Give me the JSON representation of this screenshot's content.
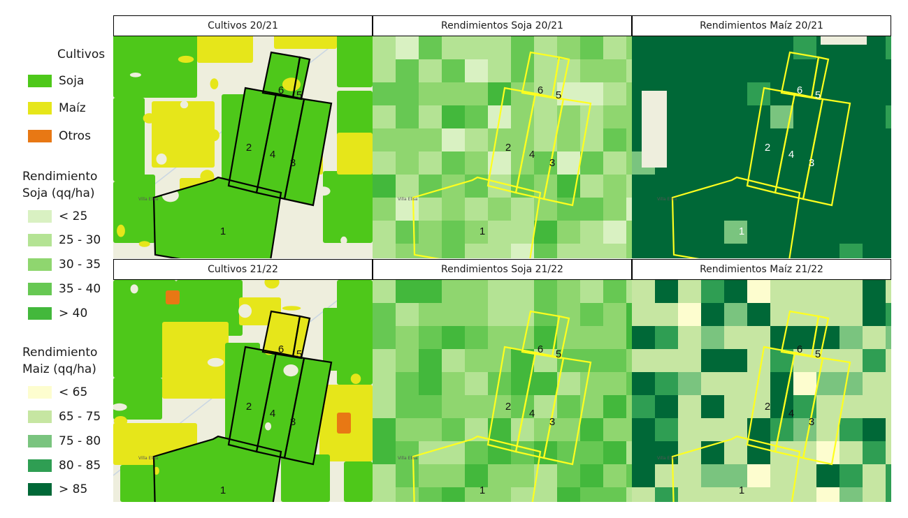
{
  "legend": {
    "cultivos_title": "Cultivos",
    "cultivos": [
      {
        "label": "Soja",
        "color": "#4ec81a"
      },
      {
        "label": "Maíz",
        "color": "#e6e61a"
      },
      {
        "label": "Otros",
        "color": "#e87814"
      }
    ],
    "soja_title_1": "Rendimiento",
    "soja_title_2": "Soja (qq/ha)",
    "soja": [
      {
        "label": "< 25",
        "color": "#d9f1c2"
      },
      {
        "label": "25 - 30",
        "color": "#b4e394"
      },
      {
        "label": "30 - 35",
        "color": "#8fd66f"
      },
      {
        "label": "35 - 40",
        "color": "#67c853"
      },
      {
        "label": "> 40",
        "color": "#43b83c"
      }
    ],
    "maiz_title_1": "Rendimiento",
    "maiz_title_2": "Maiz (qq/ha)",
    "maiz": [
      {
        "label": "< 65",
        "color": "#fdfdcf"
      },
      {
        "label": "65 - 75",
        "color": "#c6e6a2"
      },
      {
        "label": "75 - 80",
        "color": "#7ac47f"
      },
      {
        "label": "80 - 85",
        "color": "#2f9e53"
      },
      {
        "label": "> 85",
        "color": "#006837"
      }
    ]
  },
  "panels": [
    {
      "title": "Cultivos 20/21",
      "kind": "crops",
      "season": "2021",
      "outline": "#000000"
    },
    {
      "title": "Rendimientos Soja 20/21",
      "kind": "soja",
      "season": "2021",
      "outline": "#ffff1e"
    },
    {
      "title": "Rendimientos Maíz 20/21",
      "kind": "maiz",
      "season": "2021",
      "outline": "#ffff1e"
    },
    {
      "title": "Cultivos 21/22",
      "kind": "crops",
      "season": "2122",
      "outline": "#000000"
    },
    {
      "title": "Rendimientos Soja 21/22",
      "kind": "soja",
      "season": "2122",
      "outline": "#ffff1e"
    },
    {
      "title": "Rendimientos Maíz 21/22",
      "kind": "maiz",
      "season": "2122",
      "outline": "#ffff1e"
    }
  ],
  "lot_labels": [
    "1",
    "2",
    "3",
    "4",
    "5",
    "6"
  ],
  "town_label": "Villa Elisa"
}
